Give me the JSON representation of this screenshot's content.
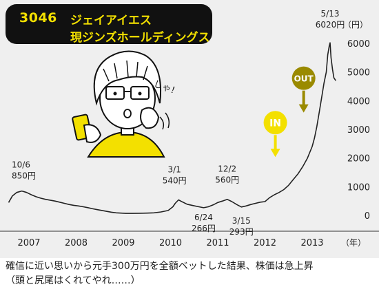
{
  "header": {
    "code": "3046",
    "line1": "ジェイアイエス",
    "line2": "現ジンズホールディングス"
  },
  "caption": {
    "line1": "確信に近い思いから元手300万円を全額ベットした結果、株価は急上昇",
    "line2": "（頭と尻尾はくれてやれ……）"
  },
  "illustration": {
    "exclaim": "しゃ！"
  },
  "chart_data": {
    "type": "line",
    "title": "",
    "xlabel": "（年）",
    "ylabel": "（円）",
    "ylim": [
      -200,
      6200
    ],
    "xlim": [
      2006.55,
      2013.8
    ],
    "y_ticks": [
      "0",
      "1000",
      "2000",
      "3000",
      "4000",
      "5000",
      "6000"
    ],
    "x_ticks": [
      "2007",
      "2008",
      "2009",
      "2010",
      "2011",
      "2012",
      "2013"
    ],
    "series": [
      {
        "name": "",
        "x": [
          2006.57,
          2006.65,
          2006.74,
          2006.85,
          2006.95,
          2007.05,
          2007.15,
          2007.25,
          2007.35,
          2007.45,
          2007.55,
          2007.65,
          2007.75,
          2007.85,
          2007.95,
          2008.05,
          2008.15,
          2008.25,
          2008.35,
          2008.45,
          2008.55,
          2008.65,
          2008.75,
          2008.85,
          2008.95,
          2009.05,
          2009.2,
          2009.35,
          2009.5,
          2009.65,
          2009.8,
          2009.95,
          2010.05,
          2010.1,
          2010.17,
          2010.25,
          2010.35,
          2010.48,
          2010.6,
          2010.7,
          2010.8,
          2010.92,
          2011.0,
          2011.1,
          2011.2,
          2011.3,
          2011.4,
          2011.5,
          2011.6,
          2011.7,
          2011.8,
          2011.9,
          2012.0,
          2012.1,
          2012.2,
          2012.3,
          2012.4,
          2012.5,
          2012.6,
          2012.7,
          2012.8,
          2012.9,
          2013.0,
          2013.05,
          2013.1,
          2013.15,
          2013.2,
          2013.25,
          2013.3,
          2013.33,
          2013.36,
          2013.38,
          2013.4,
          2013.43,
          2013.46,
          2013.5
        ],
        "values": [
          450,
          680,
          800,
          850,
          800,
          720,
          650,
          600,
          560,
          530,
          500,
          460,
          420,
          380,
          350,
          330,
          300,
          270,
          230,
          200,
          170,
          140,
          110,
          90,
          80,
          70,
          70,
          75,
          80,
          90,
          120,
          170,
          300,
          420,
          540,
          470,
          390,
          340,
          300,
          266,
          300,
          380,
          450,
          500,
          560,
          480,
          380,
          293,
          330,
          380,
          420,
          460,
          480,
          620,
          720,
          800,
          900,
          1050,
          1250,
          1450,
          1700,
          2000,
          2400,
          2700,
          3100,
          3600,
          4100,
          4600,
          5000,
          5600,
          5900,
          6020,
          5500,
          5100,
          4800,
          4700
        ]
      }
    ],
    "annotations": [
      {
        "label": "10/6",
        "value": "850円",
        "x": 2006.74,
        "y": 850
      },
      {
        "label": "3/1",
        "value": "540円",
        "x": 2010.17,
        "y": 540
      },
      {
        "label": "6/24",
        "value": "266円",
        "x": 2010.7,
        "y": 266
      },
      {
        "label": "12/2",
        "value": "560円",
        "x": 2011.2,
        "y": 560
      },
      {
        "label": "3/15",
        "value": "293円",
        "x": 2011.5,
        "y": 293
      },
      {
        "label": "5/13",
        "value": "6020円",
        "x": 2013.38,
        "y": 6020
      }
    ],
    "markers": [
      {
        "label": "IN",
        "x": 2012.22,
        "y": 1650,
        "color": "#f3e000",
        "text_color": "#ffffff"
      },
      {
        "label": "OUT",
        "x": 2012.82,
        "y": 3200,
        "color": "#9a8a00",
        "text_color": "#ffffff"
      }
    ],
    "grid": false,
    "legend": "none",
    "line_color": "#222222"
  }
}
